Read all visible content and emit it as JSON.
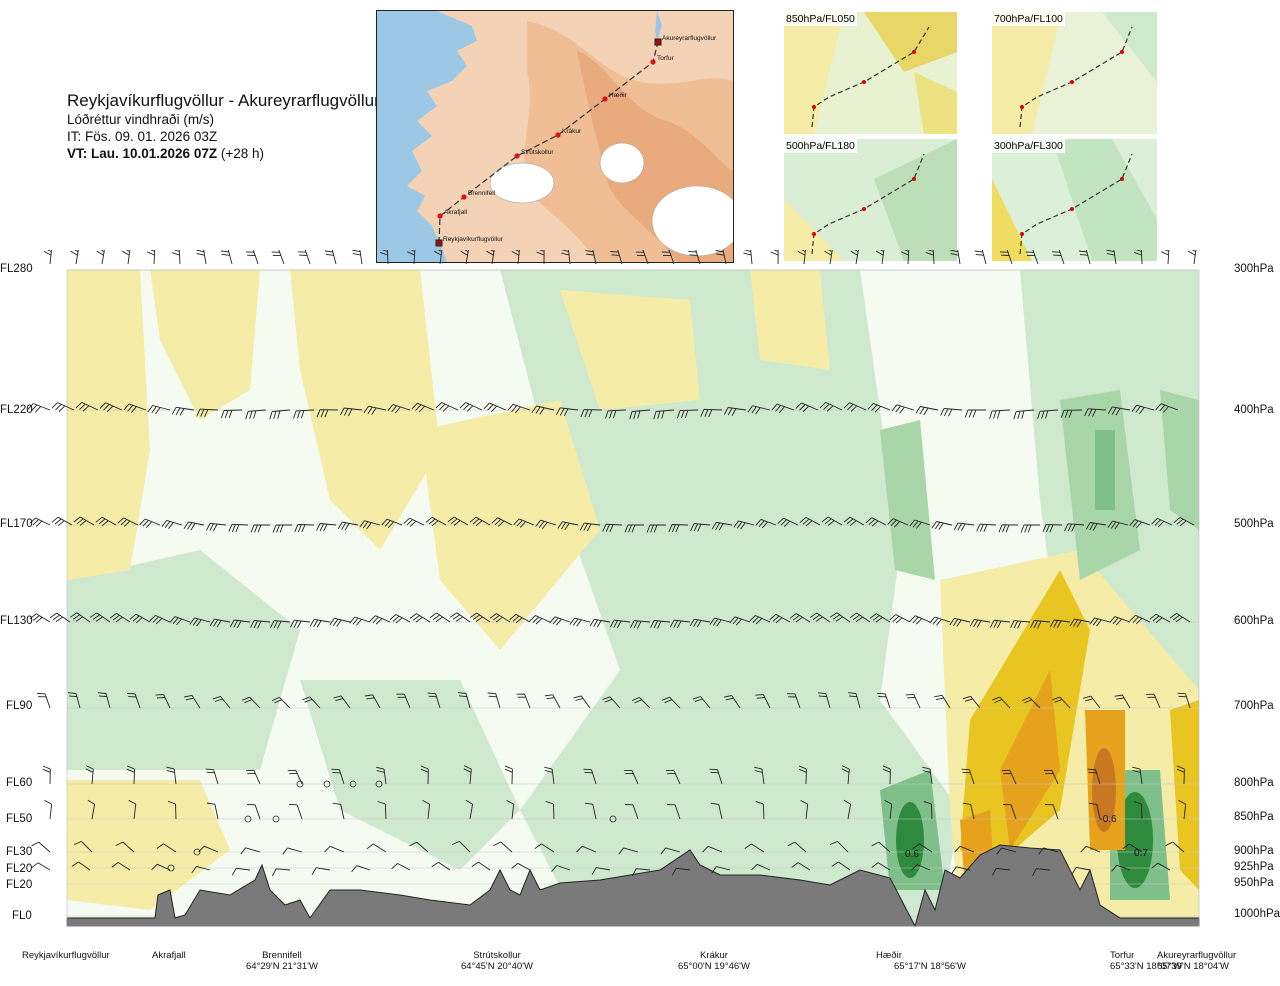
{
  "title": {
    "route": "Reykjavíkurflugvöllur - Akureyrarflugvöllur",
    "quantity": "Lóðréttur vindhraði (m/s)",
    "init_time": "IT: Fös. 09. 01. 2026 03Z",
    "valid_time_bold": "VT: Lau. 10.01.2026 07Z",
    "valid_time_offset": " (+28 h)"
  },
  "route_map": {
    "waypoints": [
      "Akureyrarflugvöllur",
      "Torfur",
      "Hæðir",
      "Krákur",
      "Strútskollur",
      "Brennifell",
      "Akrafjall",
      "Reykjavíkurflugvöllur"
    ]
  },
  "mini_maps": [
    {
      "label": "850hPa/FL050"
    },
    {
      "label": "700hPa/FL100"
    },
    {
      "label": "500hPa/FL180"
    },
    {
      "label": "300hPa/FL300"
    }
  ],
  "flight_levels": [
    "FL280",
    "FL220",
    "FL170",
    "FL130",
    "FL90",
    "FL60",
    "FL50",
    "FL30",
    "FL20",
    "FL20",
    "FL0"
  ],
  "pressure_levels": [
    "300hPa",
    "400hPa",
    "500hPa",
    "600hPa",
    "700hPa",
    "800hPa",
    "850hPa",
    "900hPa",
    "925hPa",
    "950hPa",
    "1000hPa"
  ],
  "contour_labels": [
    "0.6",
    "-0.6",
    "0.7"
  ],
  "places": [
    {
      "name": "Reykjavíkurflugvöllur",
      "coord": ""
    },
    {
      "name": "Akrafjall",
      "coord": ""
    },
    {
      "name": "Brennifell",
      "coord": "64°29'N 21°31'W"
    },
    {
      "name": "Strútskollur",
      "coord": "64°45'N 20°40'W"
    },
    {
      "name": "Krákur",
      "coord": "65°00'N 19°46'W"
    },
    {
      "name": "Hæðir",
      "coord": "65°17'N 18°56'W"
    },
    {
      "name": "Torfur",
      "coord": "65°33'N 18°07'W"
    },
    {
      "name": "Akureyrarflugvöllur",
      "coord": "65°39'N 18°04'W"
    }
  ],
  "colors": {
    "strong_up": "#2e8b3e",
    "mod_up": "#7fc08a",
    "weak_up": "#cfe9cf",
    "neutral": "#f6fbf2",
    "weak_down": "#f5eca8",
    "mod_down": "#e8c520",
    "strong_down": "#c87820",
    "terrain": "#7a7a7a",
    "sea": "#8fbfe0",
    "land": "#f3c9a6"
  }
}
